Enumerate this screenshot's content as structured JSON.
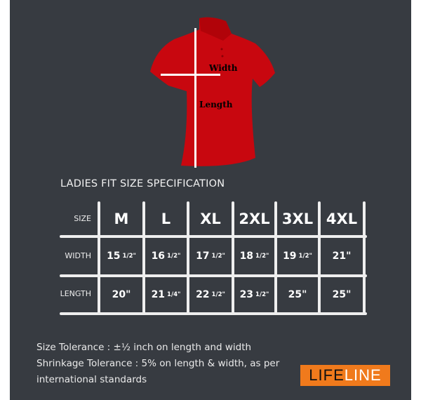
{
  "diagram": {
    "width_label": "Width",
    "length_label": "Length",
    "shirt_color": "#c8070f"
  },
  "table": {
    "title": "LADIES FIT SIZE SPECIFICATION",
    "row_labels": [
      "SIZE",
      "WIDTH",
      "LENGTH"
    ],
    "sizes": [
      "M",
      "L",
      "XL",
      "2XL",
      "3XL",
      "4XL"
    ],
    "width": [
      {
        "whole": "15",
        "frac": "1/2\""
      },
      {
        "whole": "16",
        "frac": "1/2\""
      },
      {
        "whole": "17",
        "frac": "1/2\""
      },
      {
        "whole": "18",
        "frac": "1/2\""
      },
      {
        "whole": "19",
        "frac": "1/2\""
      },
      {
        "whole": "21\"",
        "frac": ""
      }
    ],
    "length": [
      {
        "whole": "20\"",
        "frac": ""
      },
      {
        "whole": "21",
        "frac": "1/4\""
      },
      {
        "whole": "22",
        "frac": "1/2\""
      },
      {
        "whole": "23",
        "frac": "1/2\""
      },
      {
        "whole": "25\"",
        "frac": ""
      },
      {
        "whole": "25\"",
        "frac": ""
      }
    ]
  },
  "notes": {
    "line1": "Size Tolerance : ±½ inch on length and width",
    "line2": "Shrinkage Tolerance : 5% on length & width, as per",
    "line3": "international standards"
  },
  "logo": {
    "part1": "LIFE",
    "part2": "LINE",
    "color": "#f07a1c"
  },
  "colors": {
    "background": "#373b41",
    "grid": "#eeeeee"
  }
}
